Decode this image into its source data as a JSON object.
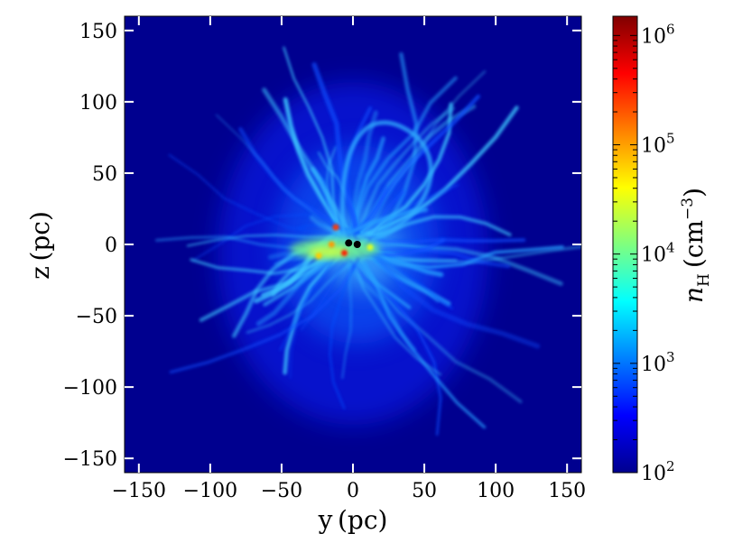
{
  "chart_data": {
    "type": "heatmap",
    "title": "",
    "xlabel": "y (pc)",
    "ylabel": "z (pc)",
    "xlim": [
      -160,
      160
    ],
    "ylim": [
      -160,
      160
    ],
    "x_ticks": [
      -150,
      -100,
      -50,
      0,
      50,
      100,
      150
    ],
    "y_ticks": [
      -150,
      -100,
      -50,
      0,
      50,
      100,
      150
    ],
    "x_tick_labels": [
      "−150",
      "−100",
      "−50",
      "0",
      "50",
      "100",
      "150"
    ],
    "y_tick_labels": [
      "−150",
      "−100",
      "−50",
      "0",
      "50",
      "100",
      "150"
    ],
    "grid": false,
    "colormap": "jet",
    "colorbar": {
      "label": "n_H (cm^-3)",
      "label_main": "n",
      "label_sub": "H",
      "label_unit": "(cm",
      "label_exp": "−3",
      "label_close": ")",
      "scale": "log",
      "range": [
        100,
        1500000
      ],
      "ticks": [
        100,
        1000,
        10000,
        100000,
        1000000
      ],
      "tick_bases": [
        "10",
        "10",
        "10",
        "10",
        "10"
      ],
      "tick_exps": [
        "2",
        "3",
        "4",
        "5",
        "6"
      ]
    },
    "background_density": 100,
    "markers": [
      {
        "y": -3,
        "z": 1,
        "color": "#000000"
      },
      {
        "y": 3,
        "z": 0,
        "color": "#000000"
      }
    ],
    "dense_clumps": [
      {
        "y": -12,
        "z": 12,
        "color": "#ff3b00"
      },
      {
        "y": -15,
        "z": 0,
        "color": "#ff9a00"
      },
      {
        "y": -6,
        "z": -6,
        "color": "#ff1a00"
      },
      {
        "y": -24,
        "z": -8,
        "color": "#ffcf00"
      },
      {
        "y": 12,
        "z": -2,
        "color": "#dfff20"
      }
    ]
  }
}
